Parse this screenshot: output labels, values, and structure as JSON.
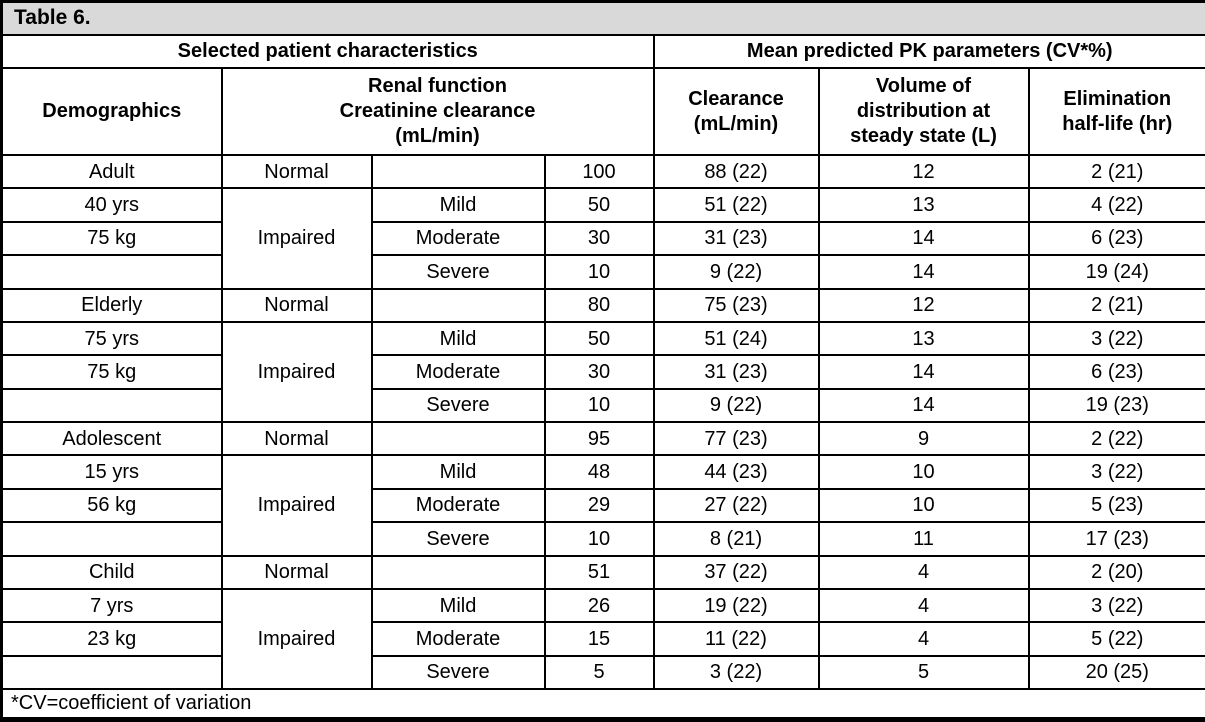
{
  "title": "Table 6.",
  "footnote": "*CV=coefficient of variation",
  "colors": {
    "title_bar_bg": "#d9d9d9",
    "border": "#000000",
    "cell_bg": "#ffffff"
  },
  "header": {
    "group_left": "Selected patient characteristics",
    "group_right": "Mean predicted PK parameters (CV*%)",
    "columns": {
      "demographics": "Demographics",
      "renal_function": "Renal function\nCreatinine clearance\n(mL/min)",
      "clearance": "Clearance\n(mL/min)",
      "volume": "Volume of\ndistribution at\nsteady state (L)",
      "half_life": "Elimination\nhalf-life (hr)"
    }
  },
  "groups": [
    {
      "demographics": [
        "Adult",
        "40 yrs",
        "75 kg",
        ""
      ],
      "rows": [
        {
          "renal": "Normal",
          "severity": "",
          "crcl": "100",
          "clearance": "88 (22)",
          "vd": "12",
          "half_life": "2 (21)"
        },
        {
          "renal": "Impaired",
          "severity": "Mild",
          "crcl": "50",
          "clearance": "51 (22)",
          "vd": "13",
          "half_life": "4 (22)"
        },
        {
          "severity": "Moderate",
          "crcl": "30",
          "clearance": "31 (23)",
          "vd": "14",
          "half_life": "6 (23)"
        },
        {
          "severity": "Severe",
          "crcl": "10",
          "clearance": "9 (22)",
          "vd": "14",
          "half_life": "19 (24)"
        }
      ]
    },
    {
      "demographics": [
        "Elderly",
        "75 yrs",
        "75 kg",
        ""
      ],
      "rows": [
        {
          "renal": "Normal",
          "severity": "",
          "crcl": "80",
          "clearance": "75 (23)",
          "vd": "12",
          "half_life": "2 (21)"
        },
        {
          "renal": "Impaired",
          "severity": "Mild",
          "crcl": "50",
          "clearance": "51 (24)",
          "vd": "13",
          "half_life": "3 (22)"
        },
        {
          "severity": "Moderate",
          "crcl": "30",
          "clearance": "31 (23)",
          "vd": "14",
          "half_life": "6 (23)"
        },
        {
          "severity": "Severe",
          "crcl": "10",
          "clearance": "9 (22)",
          "vd": "14",
          "half_life": "19 (23)"
        }
      ]
    },
    {
      "demographics": [
        "Adolescent",
        "15 yrs",
        "56 kg",
        ""
      ],
      "rows": [
        {
          "renal": "Normal",
          "severity": "",
          "crcl": "95",
          "clearance": "77 (23)",
          "vd": "9",
          "half_life": "2 (22)"
        },
        {
          "renal": "Impaired",
          "severity": "Mild",
          "crcl": "48",
          "clearance": "44 (23)",
          "vd": "10",
          "half_life": "3 (22)"
        },
        {
          "severity": "Moderate",
          "crcl": "29",
          "clearance": "27 (22)",
          "vd": "10",
          "half_life": "5 (23)"
        },
        {
          "severity": "Severe",
          "crcl": "10",
          "clearance": "8 (21)",
          "vd": "11",
          "half_life": "17 (23)"
        }
      ]
    },
    {
      "demographics": [
        "Child",
        "7 yrs",
        "23 kg",
        ""
      ],
      "rows": [
        {
          "renal": "Normal",
          "severity": "",
          "crcl": "51",
          "clearance": "37 (22)",
          "vd": "4",
          "half_life": "2 (20)"
        },
        {
          "renal": "Impaired",
          "severity": "Mild",
          "crcl": "26",
          "clearance": "19 (22)",
          "vd": "4",
          "half_life": "3 (22)"
        },
        {
          "severity": "Moderate",
          "crcl": "15",
          "clearance": "11 (22)",
          "vd": "4",
          "half_life": "5 (22)"
        },
        {
          "severity": "Severe",
          "crcl": "5",
          "clearance": "3 (22)",
          "vd": "5",
          "half_life": "20 (25)"
        }
      ]
    }
  ]
}
